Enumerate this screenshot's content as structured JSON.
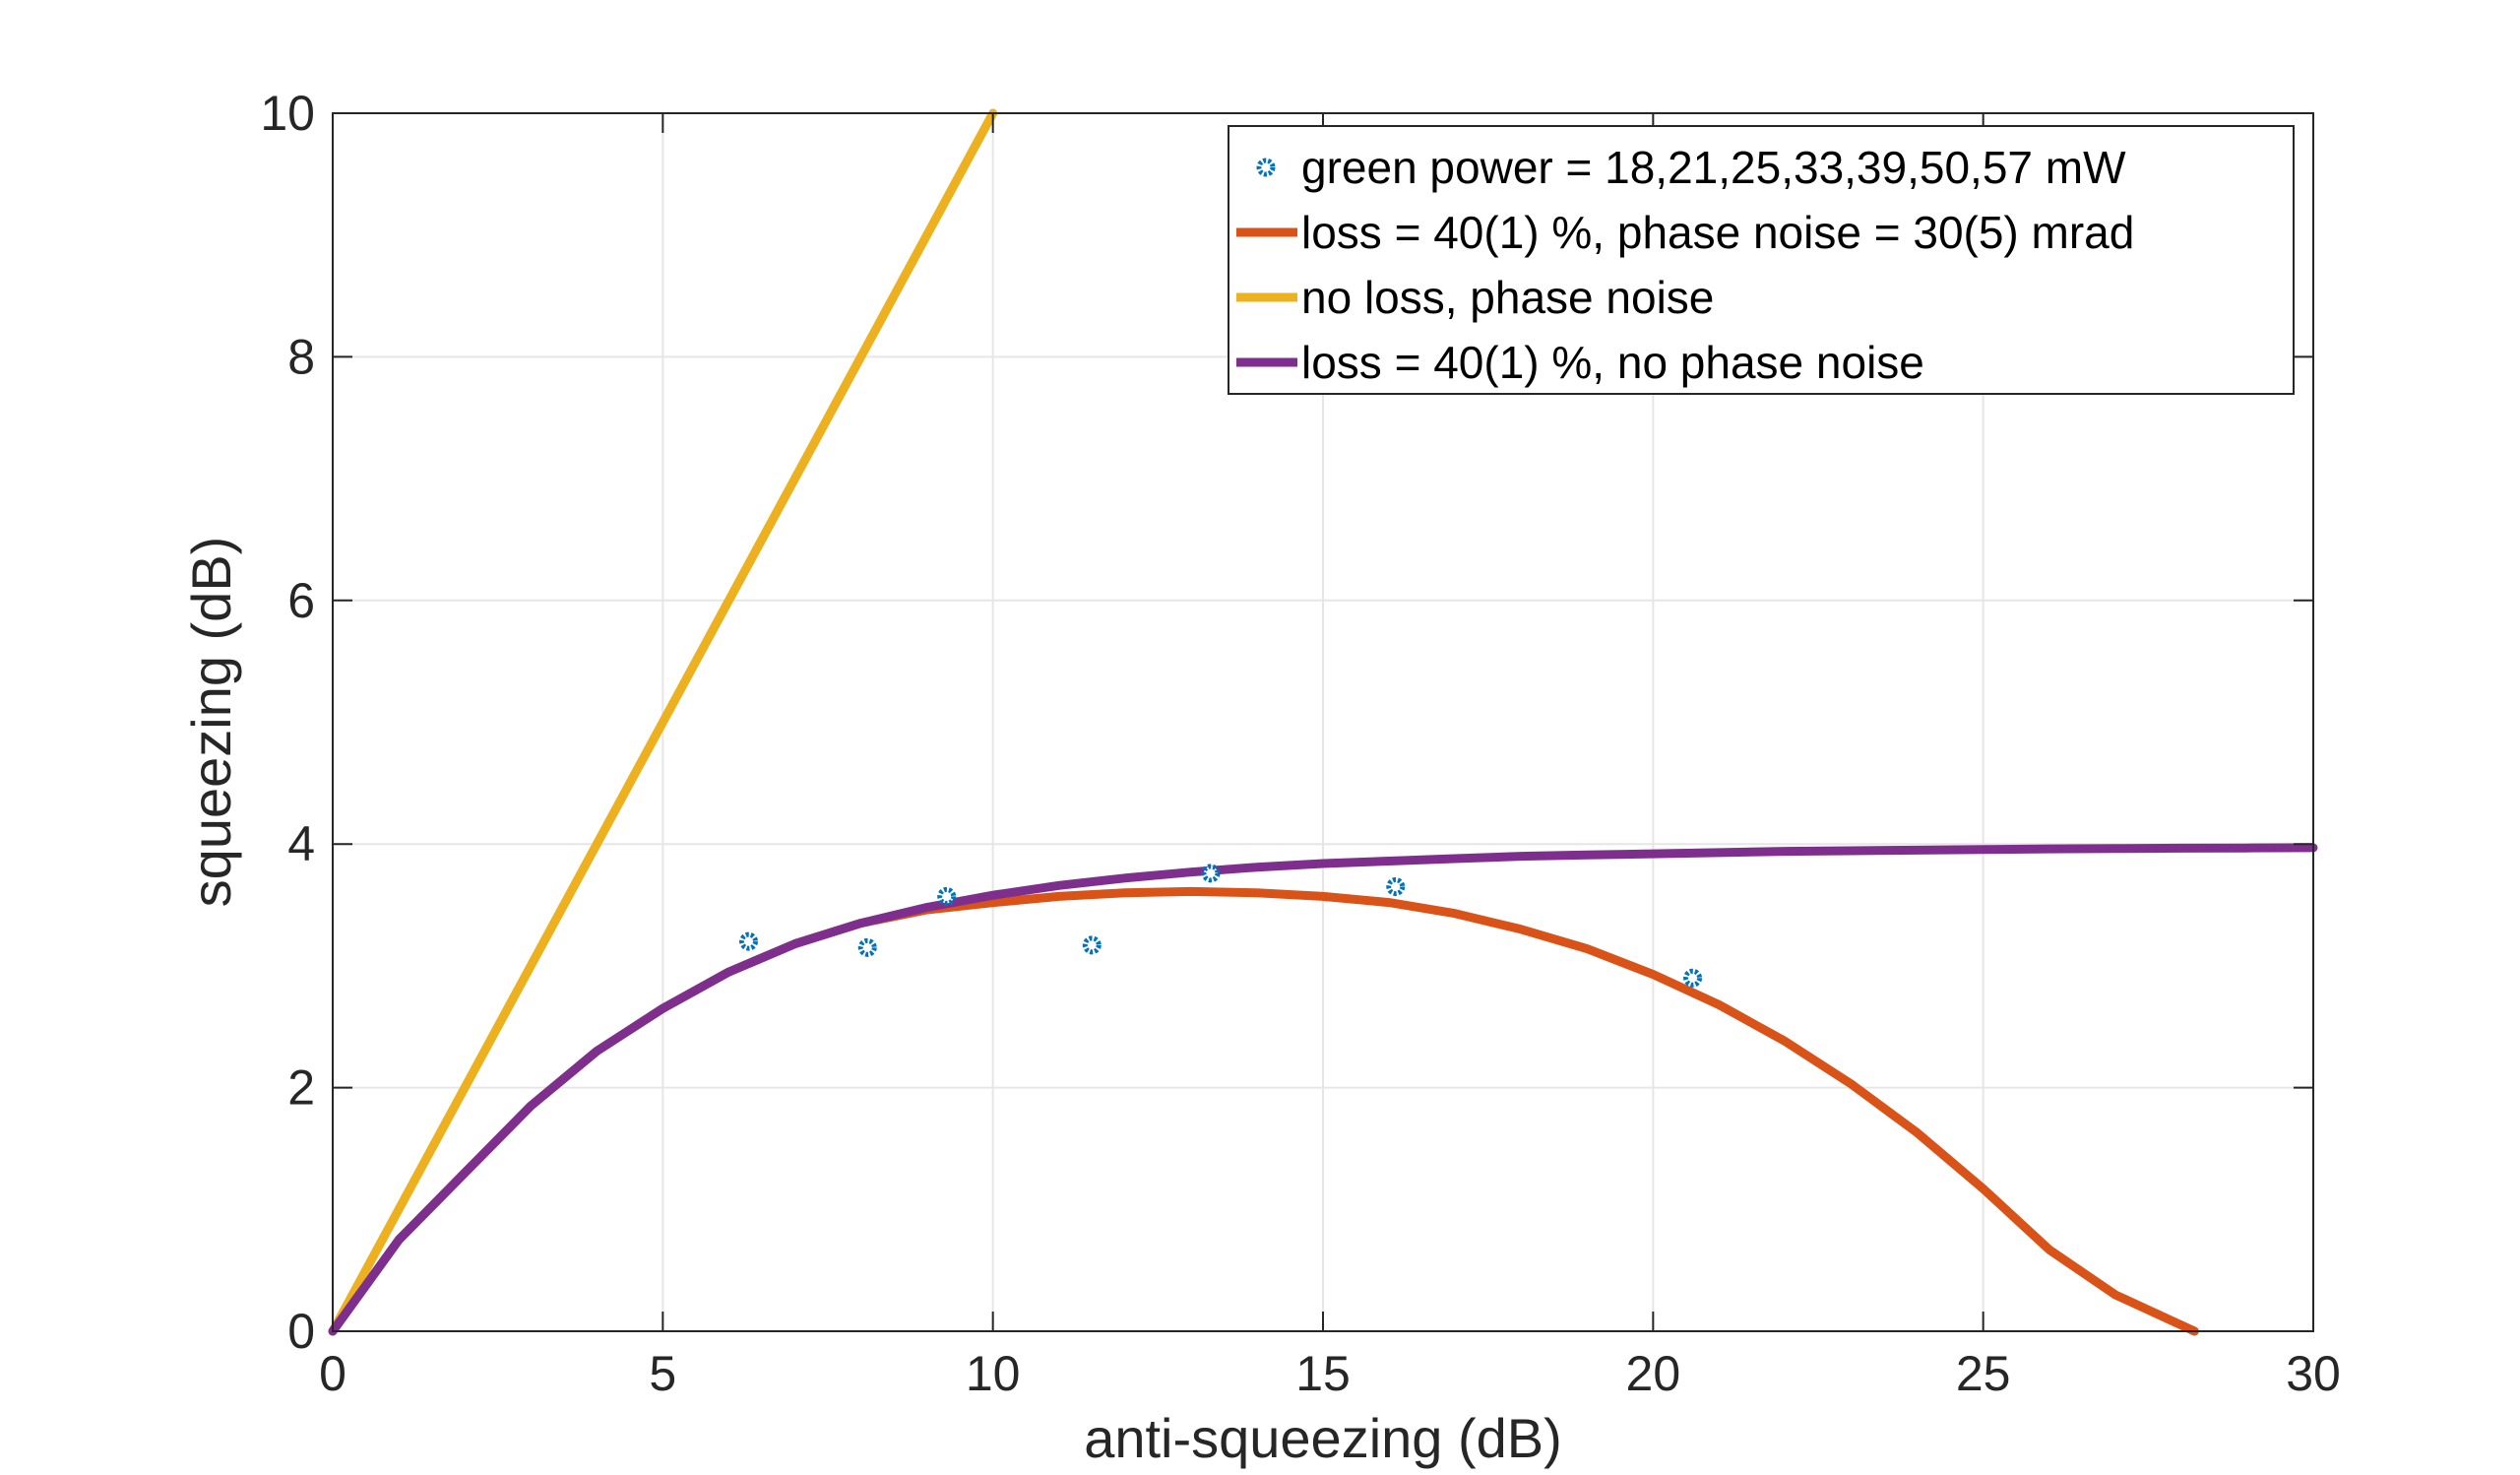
{
  "chart_data": {
    "type": "line",
    "xlabel": "anti-squeezing (dB)",
    "ylabel": "squeezing (dB)",
    "xlim": [
      0,
      30
    ],
    "ylim": [
      0,
      10
    ],
    "xticks": [
      "0",
      "5",
      "10",
      "15",
      "20",
      "25",
      "30"
    ],
    "yticks": [
      "0",
      "2",
      "4",
      "6",
      "8",
      "10"
    ],
    "grid": true,
    "legend_position": "top-right",
    "series": [
      {
        "name": "green power = 18,21,25,33,39,50,57 mW",
        "kind": "scatter",
        "color": "#0072BD",
        "x": [
          6.3,
          8.1,
          9.3,
          11.5,
          13.3,
          16.1,
          20.6
        ],
        "y": [
          3.2,
          3.15,
          3.57,
          3.17,
          3.76,
          3.65,
          2.9
        ]
      },
      {
        "name": "loss = 40(1) %, phase noise = 30(5) mrad",
        "kind": "line",
        "color": "#D95319",
        "x": [
          0,
          1,
          2,
          3,
          4,
          5,
          6,
          7,
          8,
          9,
          10,
          11,
          12,
          13,
          14,
          15,
          16,
          17,
          18,
          19,
          20,
          21,
          22,
          23,
          24,
          25,
          26,
          27,
          28,
          28.2
        ],
        "y": [
          0,
          0.75,
          1.3,
          1.85,
          2.3,
          2.65,
          2.95,
          3.18,
          3.35,
          3.46,
          3.52,
          3.57,
          3.6,
          3.61,
          3.6,
          3.57,
          3.52,
          3.43,
          3.3,
          3.14,
          2.93,
          2.68,
          2.38,
          2.03,
          1.63,
          1.17,
          0.67,
          0.3,
          0.05,
          0
        ]
      },
      {
        "name": "no loss, phase noise",
        "kind": "line",
        "color": "#EDB120",
        "x": [
          0,
          10
        ],
        "y": [
          0,
          10
        ]
      },
      {
        "name": "loss = 40(1) %, no phase noise",
        "kind": "line",
        "color": "#7E2F8E",
        "x": [
          0,
          1,
          2,
          3,
          4,
          5,
          6,
          7,
          8,
          9,
          10,
          11,
          12,
          13,
          14,
          15,
          16,
          17,
          18,
          19,
          20,
          21,
          22,
          23,
          24,
          25,
          26,
          27,
          28,
          29,
          30
        ],
        "y": [
          0,
          0.75,
          1.3,
          1.85,
          2.3,
          2.65,
          2.95,
          3.18,
          3.35,
          3.48,
          3.58,
          3.66,
          3.72,
          3.77,
          3.81,
          3.84,
          3.86,
          3.88,
          3.9,
          3.91,
          3.92,
          3.93,
          3.94,
          3.945,
          3.95,
          3.955,
          3.96,
          3.963,
          3.966,
          3.968,
          3.97
        ]
      }
    ]
  }
}
